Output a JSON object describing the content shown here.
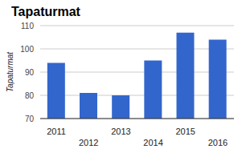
{
  "chart_data": {
    "type": "bar",
    "title": "Tapaturmat",
    "y_label": "Tapaturmat",
    "categories": [
      "2011",
      "2012",
      "2013",
      "2014",
      "2015",
      "2016"
    ],
    "values": [
      94,
      81,
      80,
      95,
      107,
      104
    ],
    "color": "#3366cc",
    "ylim": [
      70,
      110
    ],
    "yticks": [
      70,
      80,
      90,
      100,
      110
    ],
    "grid": true
  }
}
